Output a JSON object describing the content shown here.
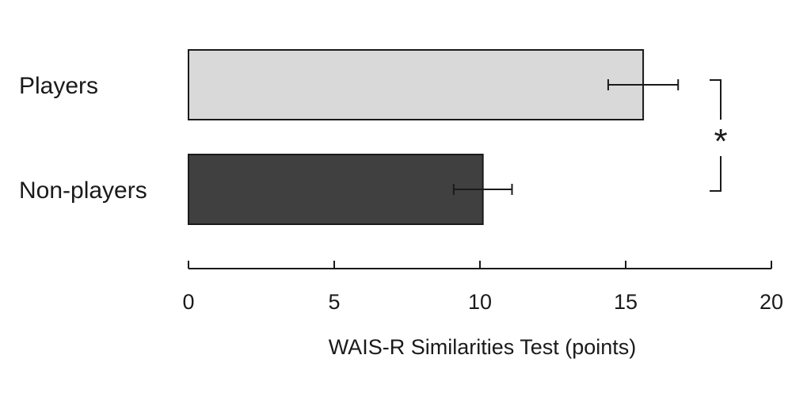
{
  "chart_data": {
    "type": "bar",
    "orientation": "horizontal",
    "categories": [
      "Players",
      "Non-players"
    ],
    "values": [
      15.6,
      10.1
    ],
    "errors": [
      1.2,
      1.0
    ],
    "colors": [
      "#d9d9d9",
      "#404040"
    ],
    "xlabel": "WAIS-R Similarities Test (points)",
    "ylabel": "",
    "xlim": [
      0,
      20
    ],
    "xticks": [
      0,
      5,
      10,
      15,
      20
    ],
    "tick_labels": [
      "0",
      "5",
      "10",
      "15",
      "20"
    ],
    "grid": false,
    "significance": {
      "between": [
        "Players",
        "Non-players"
      ],
      "marker": "*"
    }
  }
}
